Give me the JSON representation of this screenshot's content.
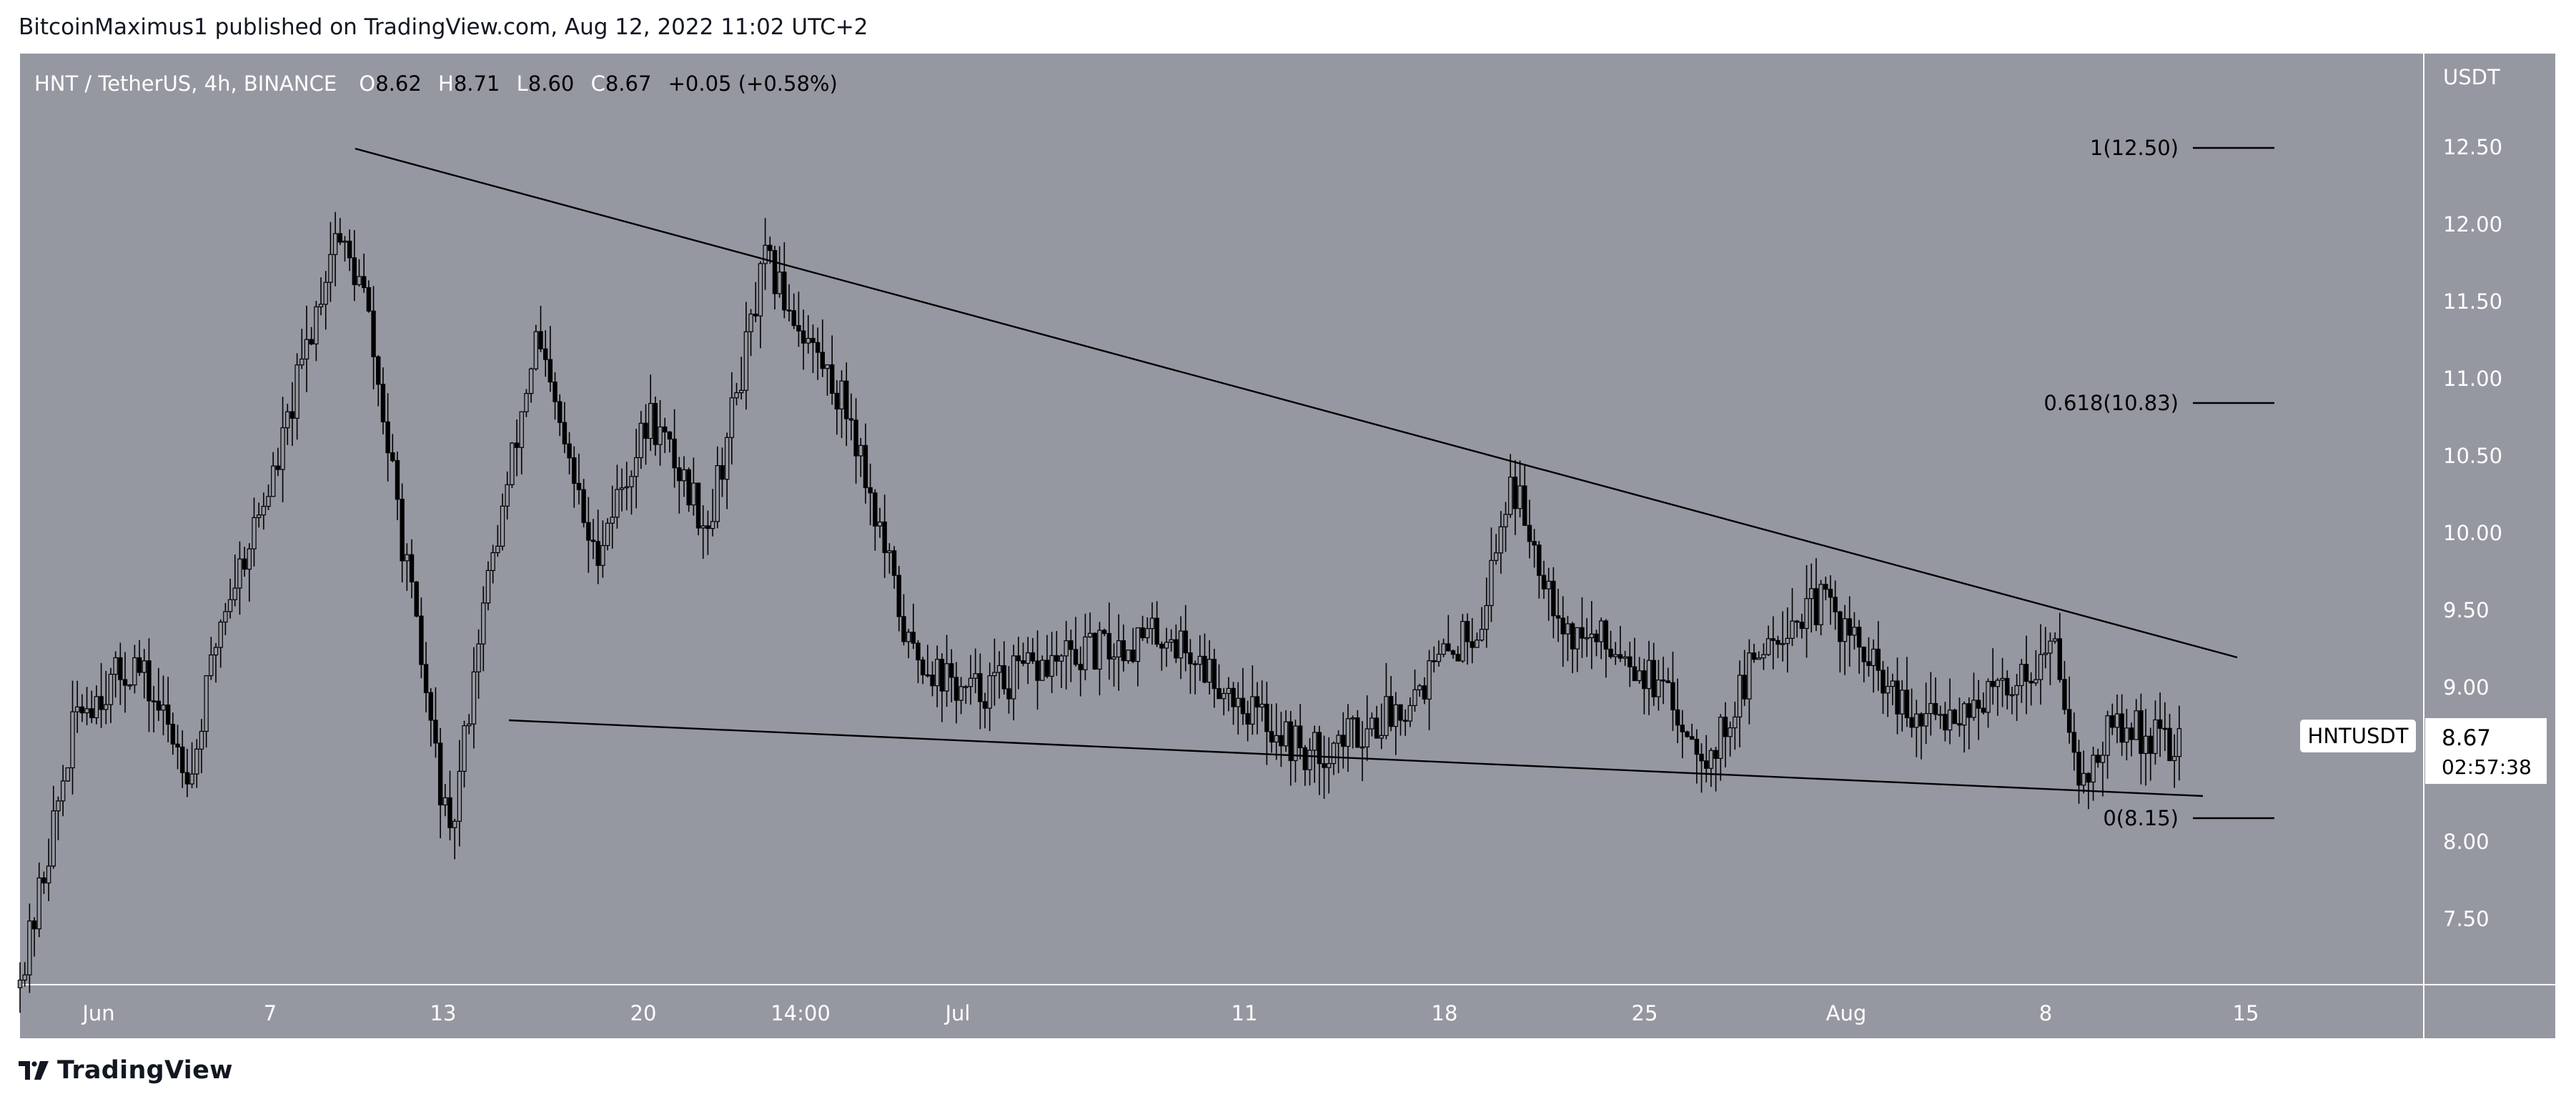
{
  "header": {
    "publisher_line": "BitcoinMaximus1 published on TradingView.com, Aug 12, 2022 11:02 UTC+2"
  },
  "legend": {
    "symbol_line": "HNT / TetherUS, 4h, BINANCE",
    "open_label": "O",
    "open_value": "8.62",
    "high_label": "H",
    "high_value": "8.71",
    "low_label": "L",
    "low_value": "8.60",
    "close_label": "C",
    "close_value": "8.67",
    "change": "+0.05 (+0.58%)"
  },
  "price_axis": {
    "currency": "USDT",
    "ticks": [
      "12.50",
      "12.00",
      "11.50",
      "11.00",
      "10.50",
      "10.00",
      "9.50",
      "9.00",
      "8.00",
      "7.50"
    ]
  },
  "time_axis": {
    "ticks": [
      "Jun",
      "7",
      "13",
      "20",
      "14:00",
      "Jul",
      "11",
      "18",
      "25",
      "Aug",
      "8",
      "15"
    ]
  },
  "price_tag": {
    "symbol": "HNTUSDT",
    "price": "8.67",
    "countdown": "02:57:38"
  },
  "fib_levels": [
    {
      "label": "1(12.50)",
      "level": 12.5
    },
    {
      "label": "0.618(10.83)",
      "level": 10.83
    },
    {
      "label": "0(8.15)",
      "level": 8.15
    }
  ],
  "footer": {
    "brand": "TradingView"
  },
  "colors": {
    "chart_background": "#9598a1",
    "candle_color": "#000000",
    "axis_text": "#ffffff",
    "legend_text": "#ffffff",
    "legend_value": "#000000",
    "trendline": "#000000",
    "price_tag_bg": "#ffffff"
  },
  "chart_data": {
    "type": "candlestick",
    "symbol": "HNT / TetherUS",
    "interval": "4h",
    "exchange": "BINANCE",
    "y_unit": "USDT",
    "ylim": [
      7.0,
      13.0
    ],
    "x_ticks": [
      "Jun",
      "7",
      "13",
      "20",
      "14:00",
      "Jul",
      "11",
      "18",
      "25",
      "Aug",
      "8",
      "15"
    ],
    "y_ticks": [
      12.5,
      12.0,
      11.5,
      11.0,
      10.5,
      10.0,
      9.5,
      9.0,
      8.0,
      7.5
    ],
    "last_price": 8.67,
    "ohlc_last": {
      "open": 8.62,
      "high": 8.71,
      "low": 8.6,
      "close": 8.67
    },
    "close_path": [
      {
        "date": "2022-05-29",
        "close": 7.1
      },
      {
        "date": "2022-05-31",
        "close": 8.9
      },
      {
        "date": "2022-06-02",
        "close": 9.2
      },
      {
        "date": "2022-06-04",
        "close": 8.5
      },
      {
        "date": "2022-06-05",
        "close": 9.5
      },
      {
        "date": "2022-06-07",
        "close": 10.5
      },
      {
        "date": "2022-06-09",
        "close": 12.0
      },
      {
        "date": "2022-06-10",
        "close": 11.6
      },
      {
        "date": "2022-06-12",
        "close": 9.2
      },
      {
        "date": "2022-06-13",
        "close": 8.0
      },
      {
        "date": "2022-06-14",
        "close": 9.4
      },
      {
        "date": "2022-06-16",
        "close": 11.3
      },
      {
        "date": "2022-06-18",
        "close": 9.9
      },
      {
        "date": "2022-06-20",
        "close": 10.8
      },
      {
        "date": "2022-06-22",
        "close": 10.1
      },
      {
        "date": "2022-06-24",
        "close": 11.8
      },
      {
        "date": "2022-06-27",
        "close": 10.8
      },
      {
        "date": "2022-06-29",
        "close": 9.3
      },
      {
        "date": "2022-07-01",
        "close": 9.0
      },
      {
        "date": "2022-07-04",
        "close": 9.2
      },
      {
        "date": "2022-07-08",
        "close": 9.4
      },
      {
        "date": "2022-07-11",
        "close": 8.9
      },
      {
        "date": "2022-07-13",
        "close": 8.6
      },
      {
        "date": "2022-07-16",
        "close": 8.9
      },
      {
        "date": "2022-07-19",
        "close": 9.5
      },
      {
        "date": "2022-07-20",
        "close": 10.4
      },
      {
        "date": "2022-07-22",
        "close": 9.4
      },
      {
        "date": "2022-07-24",
        "close": 9.3
      },
      {
        "date": "2022-07-27",
        "close": 8.6
      },
      {
        "date": "2022-07-29",
        "close": 9.4
      },
      {
        "date": "2022-07-31",
        "close": 9.6
      },
      {
        "date": "2022-08-03",
        "close": 8.8
      },
      {
        "date": "2022-08-06",
        "close": 9.0
      },
      {
        "date": "2022-08-08",
        "close": 9.3
      },
      {
        "date": "2022-08-09",
        "close": 8.4
      },
      {
        "date": "2022-08-10",
        "close": 8.8
      },
      {
        "date": "2022-08-12",
        "close": 8.67
      }
    ],
    "trendlines": [
      {
        "role": "descending resistance",
        "from": {
          "date": "2022-06-09",
          "price": 12.5
        },
        "to": {
          "date": "2022-08-14",
          "price": 9.2
        }
      },
      {
        "role": "descending support",
        "from": {
          "date": "2022-06-14",
          "price": 8.75
        },
        "to": {
          "date": "2022-08-14",
          "price": 8.3
        }
      }
    ],
    "fibonacci": [
      {
        "ratio": "1",
        "price": 12.5
      },
      {
        "ratio": "0.618",
        "price": 10.83
      },
      {
        "ratio": "0",
        "price": 8.15
      }
    ],
    "grid": false,
    "legend_position": "top-left"
  }
}
